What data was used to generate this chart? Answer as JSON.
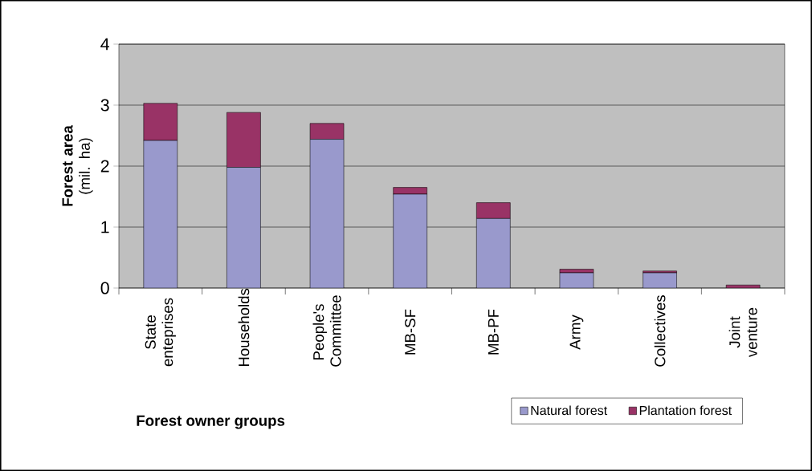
{
  "chart_data": {
    "type": "bar",
    "stacked": true,
    "xlabel": "Forest owner groups",
    "ylabel": "**Forest area** (mil. ha)",
    "categories": [
      "State enteprises",
      "Households",
      "People's Committee",
      "MB-SF",
      "MB-PF",
      "Army",
      "Collectives",
      "Joint venture"
    ],
    "series": [
      {
        "name": "Natural forest",
        "color": "#9999cc",
        "values": [
          2.42,
          1.98,
          2.44,
          1.54,
          1.14,
          0.25,
          0.25,
          0.0
        ]
      },
      {
        "name": "Plantation forest",
        "color": "#993366",
        "values": [
          0.61,
          0.9,
          0.26,
          0.11,
          0.26,
          0.06,
          0.03,
          0.05
        ]
      }
    ],
    "ylim": [
      0,
      4
    ],
    "yticks": [
      0,
      1,
      2,
      3,
      4
    ],
    "grid": "y",
    "legend": "bottom right"
  }
}
